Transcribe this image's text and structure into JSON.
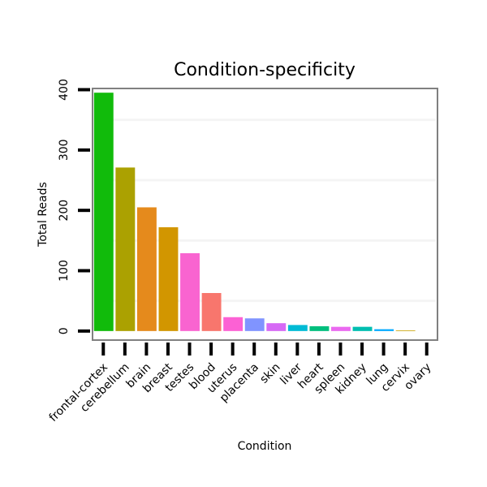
{
  "chart_data": {
    "type": "bar",
    "title": "Condition-specificity",
    "xlabel": "Condition",
    "ylabel": "Total Reads",
    "ylim": [
      -15,
      402
    ],
    "yticks": [
      0,
      100,
      200,
      300,
      400
    ],
    "categories": [
      "frontal-cortex",
      "cerebellum",
      "brain",
      "breast",
      "testes",
      "blood",
      "uterus",
      "placenta",
      "skin",
      "liver",
      "heart",
      "spleen",
      "kidney",
      "lung",
      "cervix",
      "ovary"
    ],
    "values": [
      395,
      271,
      205,
      172,
      129,
      63,
      23,
      21,
      13,
      10,
      8,
      7,
      7,
      3,
      1,
      0
    ],
    "colors": [
      "#11BB0B",
      "#ABA101",
      "#E58A1C",
      "#D29600",
      "#F964D0",
      "#F8766D",
      "#FC61D4",
      "#8094FF",
      "#D669F5",
      "#00BBD5",
      "#00BF7D",
      "#EA69F0",
      "#00BEB0",
      "#00A9FF",
      "#C8A100",
      "#B8A000"
    ],
    "grid": true,
    "legend": "none"
  }
}
